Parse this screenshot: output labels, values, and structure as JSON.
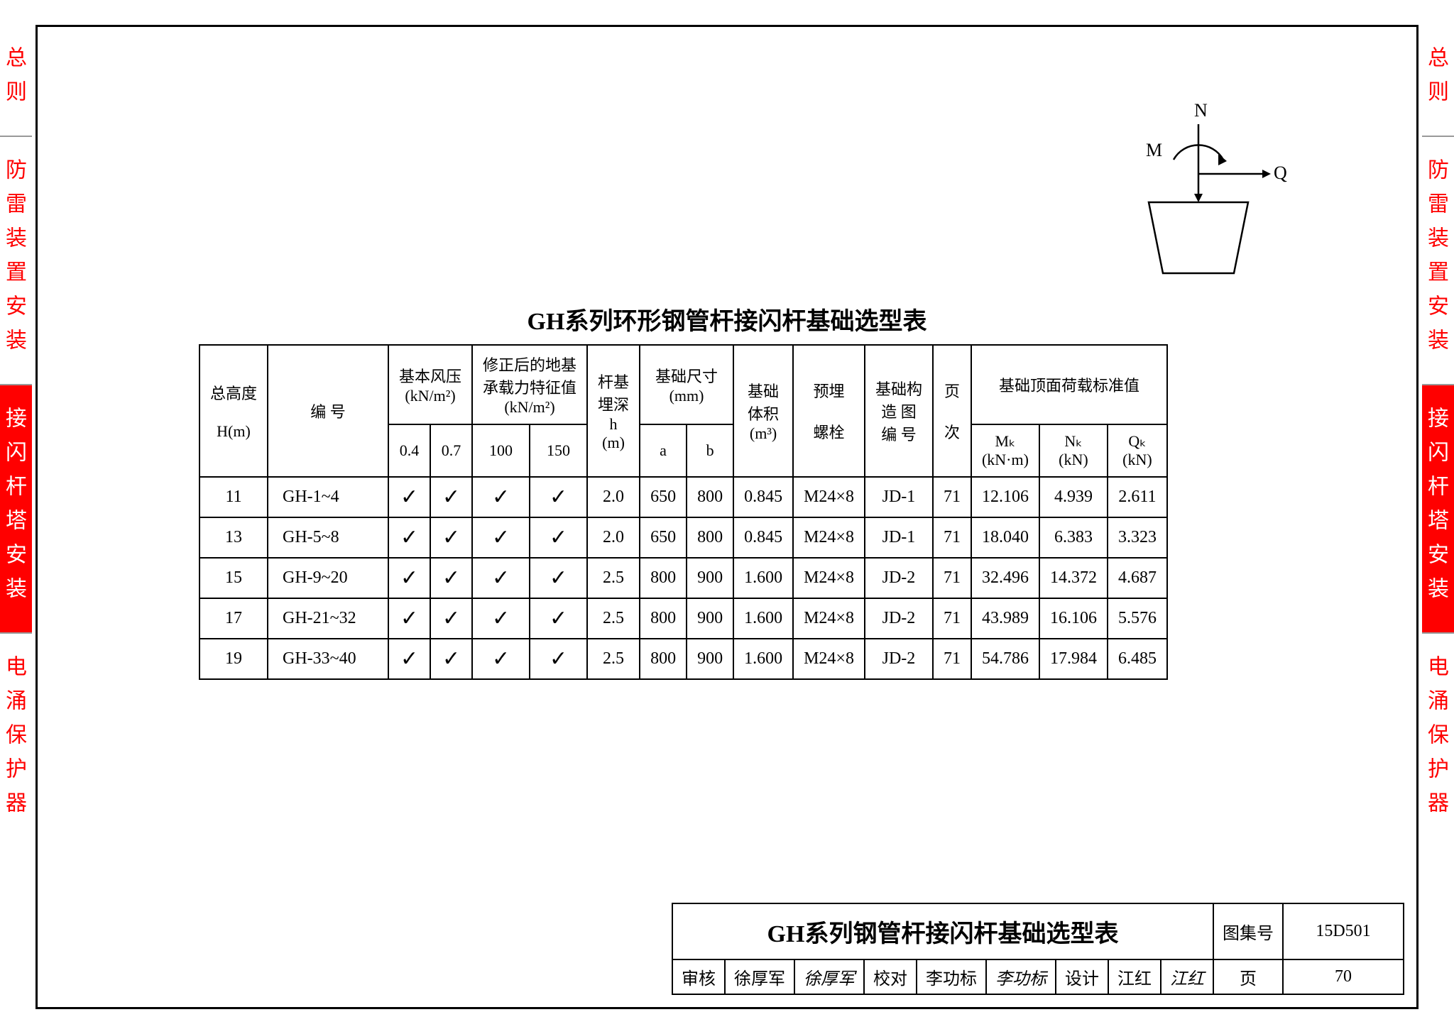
{
  "side_tabs": {
    "items": [
      {
        "label": "总则",
        "active": false
      },
      {
        "label": "防雷装置安装",
        "active": false
      },
      {
        "label": "接闪杆塔安装",
        "active": true
      },
      {
        "label": "电涌保护器",
        "active": false
      }
    ]
  },
  "diagram": {
    "labels": {
      "N": "N",
      "M": "M",
      "Q": "Q"
    }
  },
  "main_title": "GH系列环形钢管杆接闪杆基础选型表",
  "table": {
    "header": {
      "h": {
        "l1": "总高度",
        "l2": "H(m)"
      },
      "code": "编    号",
      "wind": {
        "l1": "基本风压",
        "l2": "(kN/m²)",
        "sub": [
          "0.4",
          "0.7"
        ]
      },
      "bearing": {
        "l1": "修正后的地基",
        "l2": "承载力特征值",
        "l3": "(kN/m²)",
        "sub": [
          "100",
          "150"
        ]
      },
      "depth": {
        "l1": "杆基",
        "l2": "埋深",
        "l3": "h",
        "l4": "(m)"
      },
      "dim": {
        "l1": "基础尺寸",
        "l2": "(mm)",
        "sub": [
          "a",
          "b"
        ]
      },
      "vol": {
        "l1": "基础",
        "l2": "体积",
        "l3": "(m³)"
      },
      "bolt": {
        "l1": "预埋",
        "l2": "螺栓"
      },
      "draw": {
        "l1": "基础构",
        "l2": "造 图",
        "l3": "编  号"
      },
      "page": {
        "l1": "页",
        "l2": "次"
      },
      "load": {
        "l1": "基础顶面荷载标准值",
        "sub": [
          {
            "l1": "Mₖ",
            "l2": "(kN·m)"
          },
          {
            "l1": "Nₖ",
            "l2": "(kN)"
          },
          {
            "l1": "Qₖ",
            "l2": "(kN)"
          }
        ]
      }
    },
    "checkmark": "✓",
    "rows": [
      {
        "h": "11",
        "code": "GH-1~4",
        "c": [
          true,
          true,
          true,
          true
        ],
        "depth": "2.0",
        "a": "650",
        "b": "800",
        "vol": "0.845",
        "bolt": "M24×8",
        "draw": "JD-1",
        "page": "71",
        "mk": "12.106",
        "nk": "4.939",
        "qk": "2.611"
      },
      {
        "h": "13",
        "code": "GH-5~8",
        "c": [
          true,
          true,
          true,
          true
        ],
        "depth": "2.0",
        "a": "650",
        "b": "800",
        "vol": "0.845",
        "bolt": "M24×8",
        "draw": "JD-1",
        "page": "71",
        "mk": "18.040",
        "nk": "6.383",
        "qk": "3.323"
      },
      {
        "h": "15",
        "code": "GH-9~20",
        "c": [
          true,
          true,
          true,
          true
        ],
        "depth": "2.5",
        "a": "800",
        "b": "900",
        "vol": "1.600",
        "bolt": "M24×8",
        "draw": "JD-2",
        "page": "71",
        "mk": "32.496",
        "nk": "14.372",
        "qk": "4.687"
      },
      {
        "h": "17",
        "code": "GH-21~32",
        "c": [
          true,
          true,
          true,
          true
        ],
        "depth": "2.5",
        "a": "800",
        "b": "900",
        "vol": "1.600",
        "bolt": "M24×8",
        "draw": "JD-2",
        "page": "71",
        "mk": "43.989",
        "nk": "16.106",
        "qk": "5.576"
      },
      {
        "h": "19",
        "code": "GH-33~40",
        "c": [
          true,
          true,
          true,
          true
        ],
        "depth": "2.5",
        "a": "800",
        "b": "900",
        "vol": "1.600",
        "bolt": "M24×8",
        "draw": "JD-2",
        "page": "71",
        "mk": "54.786",
        "nk": "17.984",
        "qk": "6.485"
      }
    ]
  },
  "title_block": {
    "big_title": "GH系列钢管杆接闪杆基础选型表",
    "atlas_label": "图集号",
    "atlas_value": "15D501",
    "review_label": "审核",
    "review_name": "徐厚军",
    "review_sig": "徐厚军",
    "check_label": "校对",
    "check_name": "李功标",
    "check_sig": "李功标",
    "design_label": "设计",
    "design_name": "江红",
    "design_sig": "江红",
    "page_label": "页",
    "page_value": "70"
  },
  "colors": {
    "red": "#ff0000",
    "black": "#000000",
    "white": "#ffffff"
  }
}
